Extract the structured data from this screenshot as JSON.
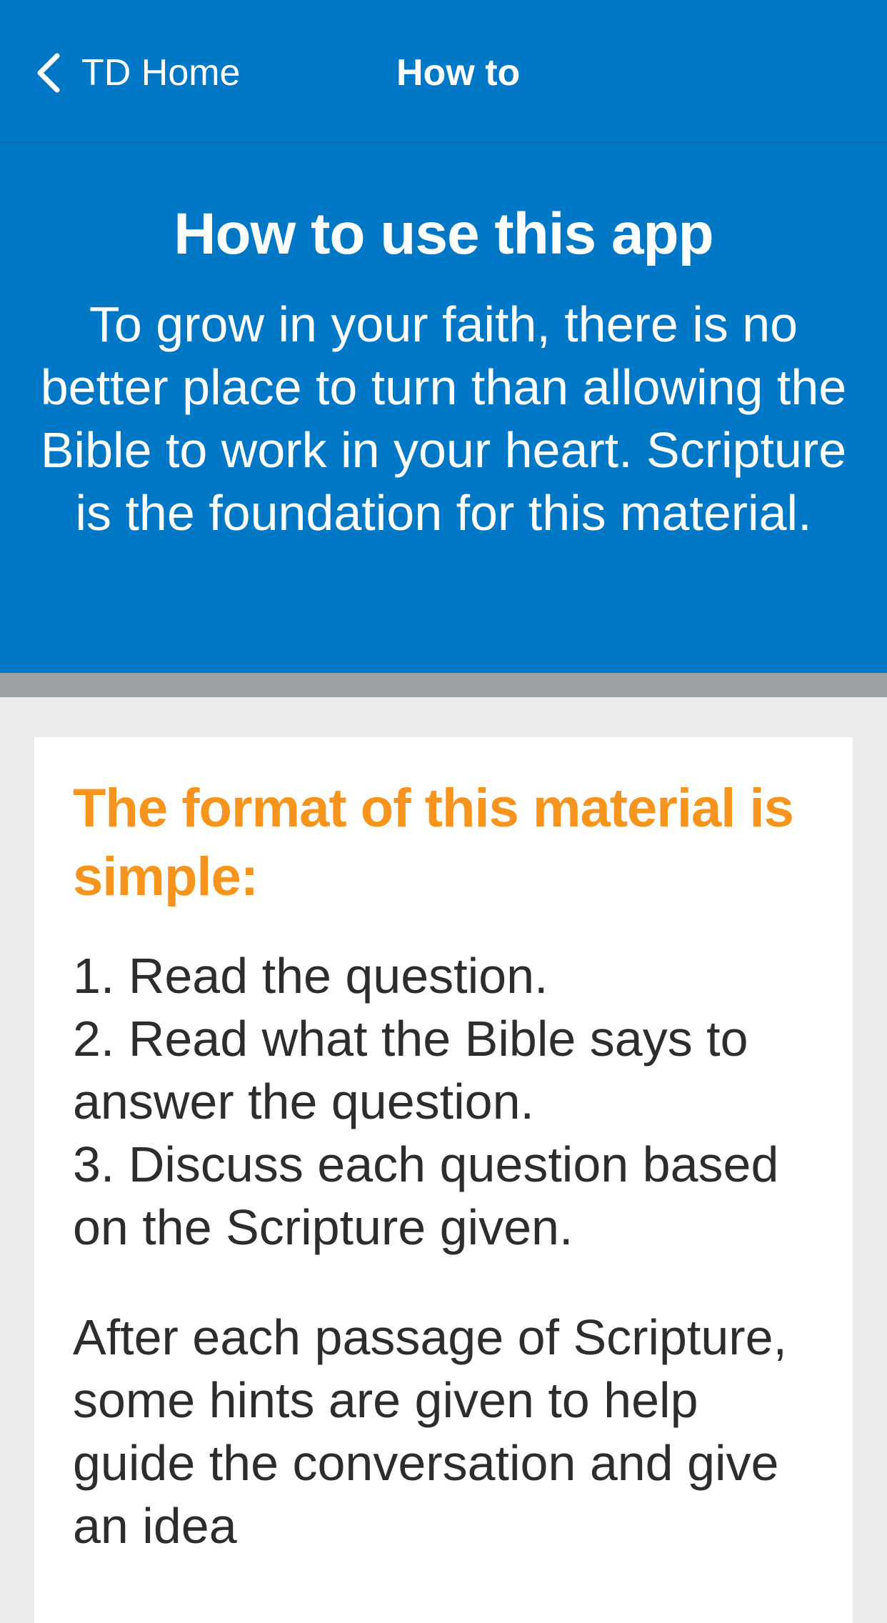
{
  "nav": {
    "back_label": "TD Home",
    "back_icon": "chevron-left-icon",
    "title": "How to"
  },
  "hero": {
    "title": "How to use this app",
    "text": "To grow in your faith, there is no better place to turn than allowing the Bible to work in your heart. Scripture is the foundation for this material."
  },
  "card": {
    "heading": "The format of this material is simple:",
    "steps": [
      "1. Read the question.",
      "2. Read what the Bible says to answer the question.",
      "3. Discuss each question based on the Scripture given."
    ],
    "paragraph": "After each passage of Scripture, some hints are given to help guide the conversation and give an idea"
  },
  "colors": {
    "brand_blue": "#0078c5",
    "accent_orange": "#f7941d",
    "background_gray": "#ebeced",
    "divider_gray": "#9ea1a4"
  }
}
